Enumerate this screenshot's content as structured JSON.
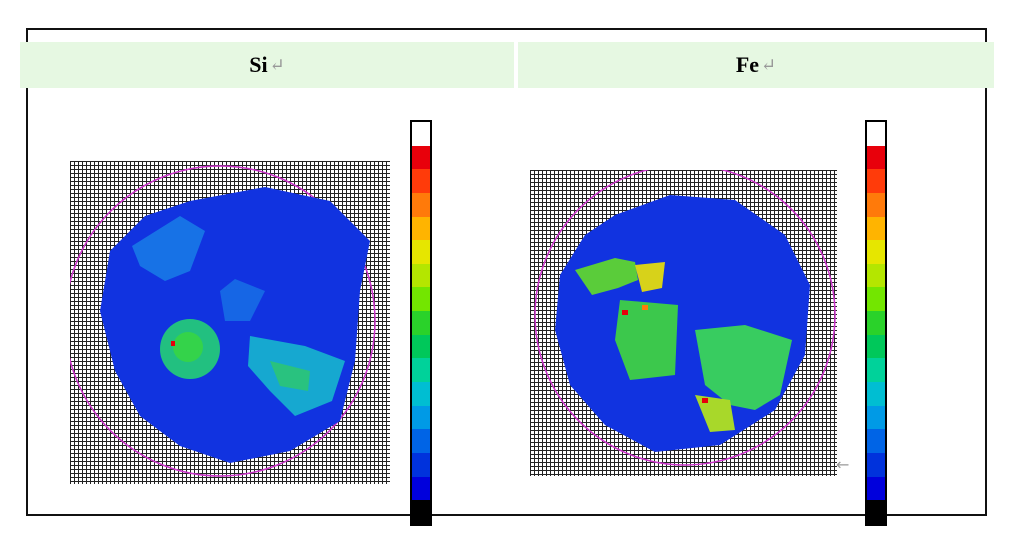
{
  "panels": [
    {
      "element": "Si",
      "mark": "↵"
    },
    {
      "element": "Fe",
      "mark": "↵"
    }
  ],
  "trailing_mark": "←",
  "colorbar_colors": [
    "#ffffff",
    "#e8000b",
    "#ff3b0a",
    "#ff7a0a",
    "#ffb400",
    "#e6e600",
    "#b4e600",
    "#73e600",
    "#2ad22a",
    "#00c85a",
    "#00d29a",
    "#00bed2",
    "#009ae6",
    "#0064e6",
    "#0032dc",
    "#0000dc",
    "#000000"
  ],
  "colors": {
    "header_bg": "#e6f8e2",
    "map_base": "#1133e0",
    "ring": "#cc33cc"
  }
}
